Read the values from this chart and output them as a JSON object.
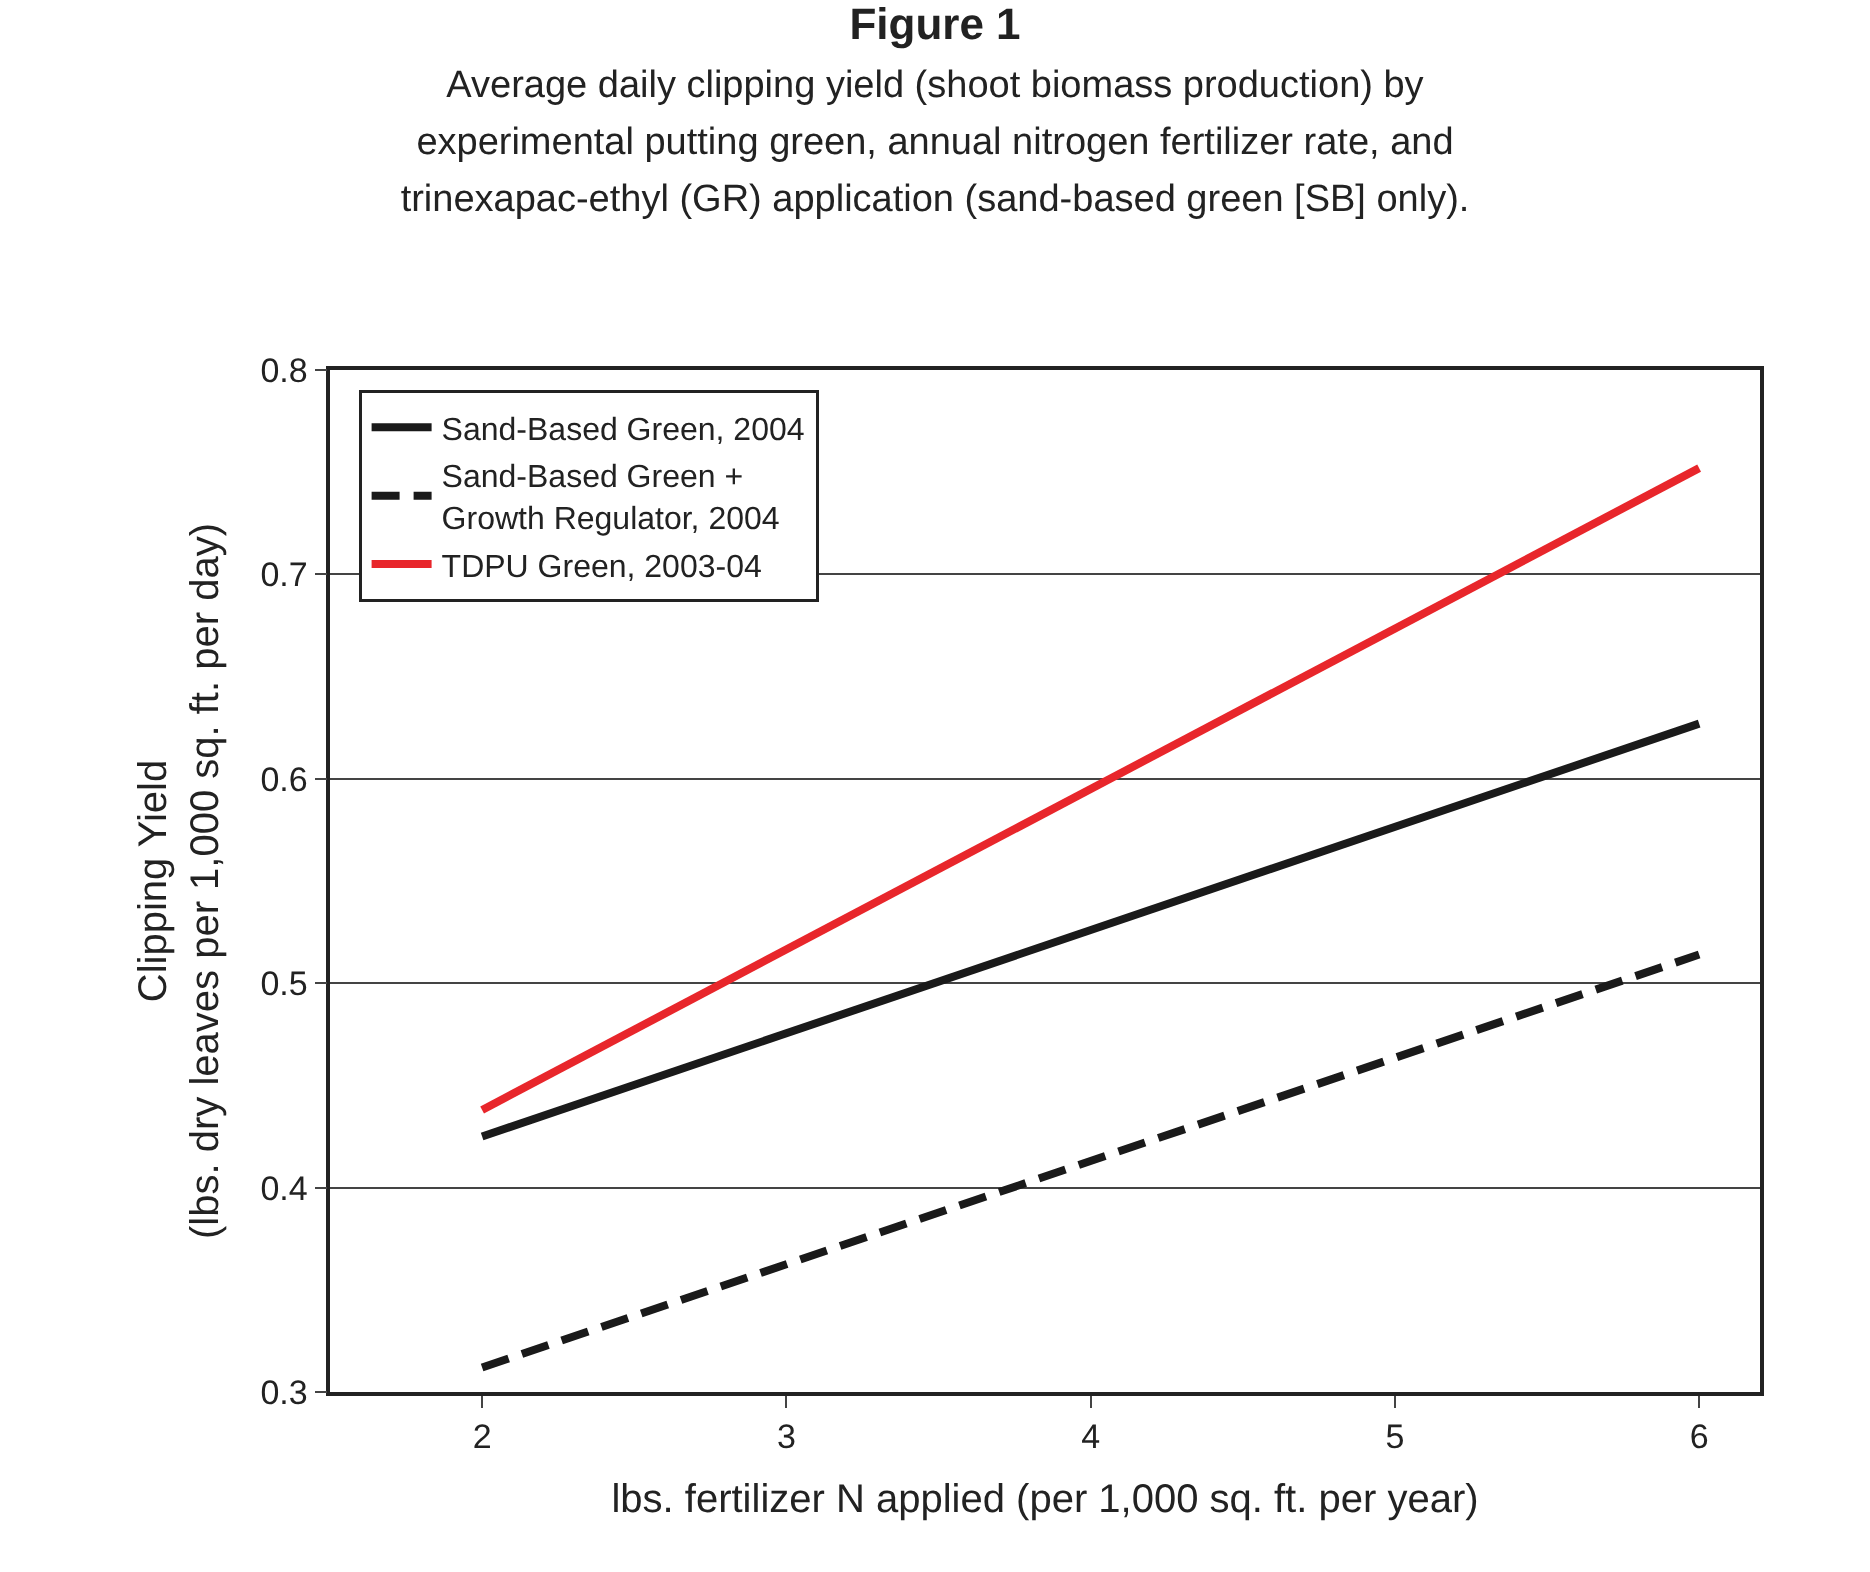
{
  "chart_data": {
    "type": "line",
    "title": "Figure 1",
    "subtitle": "Average daily clipping yield (shoot biomass production) by experimental putting green, annual nitrogen fertilizer rate, and trinexapac-ethyl (GR) application (sand-based green [SB] only).",
    "xlabel": "lbs. fertilizer N applied (per 1,000 sq. ft. per year)",
    "ylabel": "Clipping Yield\n(lbs. dry leaves per 1,000 sq. ft. per day)",
    "x": [
      2,
      6
    ],
    "series": [
      {
        "name": "Sand-Based Green, 2004",
        "color": "#1a1a1a",
        "values": [
          0.425,
          0.627
        ],
        "line_style": "solid"
      },
      {
        "name": "Sand-Based Green + Growth Regulator, 2004",
        "color": "#1a1a1a",
        "values": [
          0.312,
          0.514
        ],
        "line_style": "dashed"
      },
      {
        "name": "TDPU Green, 2003-04",
        "color": "#e8262b",
        "values": [
          0.438,
          0.752
        ],
        "line_style": "solid"
      }
    ],
    "xlim": [
      1.5,
      6.2
    ],
    "xticks": [
      2,
      3,
      4,
      5,
      6
    ],
    "ylim": [
      0.3,
      0.8
    ],
    "yticks": [
      0.3,
      0.4,
      0.5,
      0.6,
      0.7,
      0.8
    ],
    "grid": "y",
    "legend": "top left",
    "marker": "none"
  }
}
